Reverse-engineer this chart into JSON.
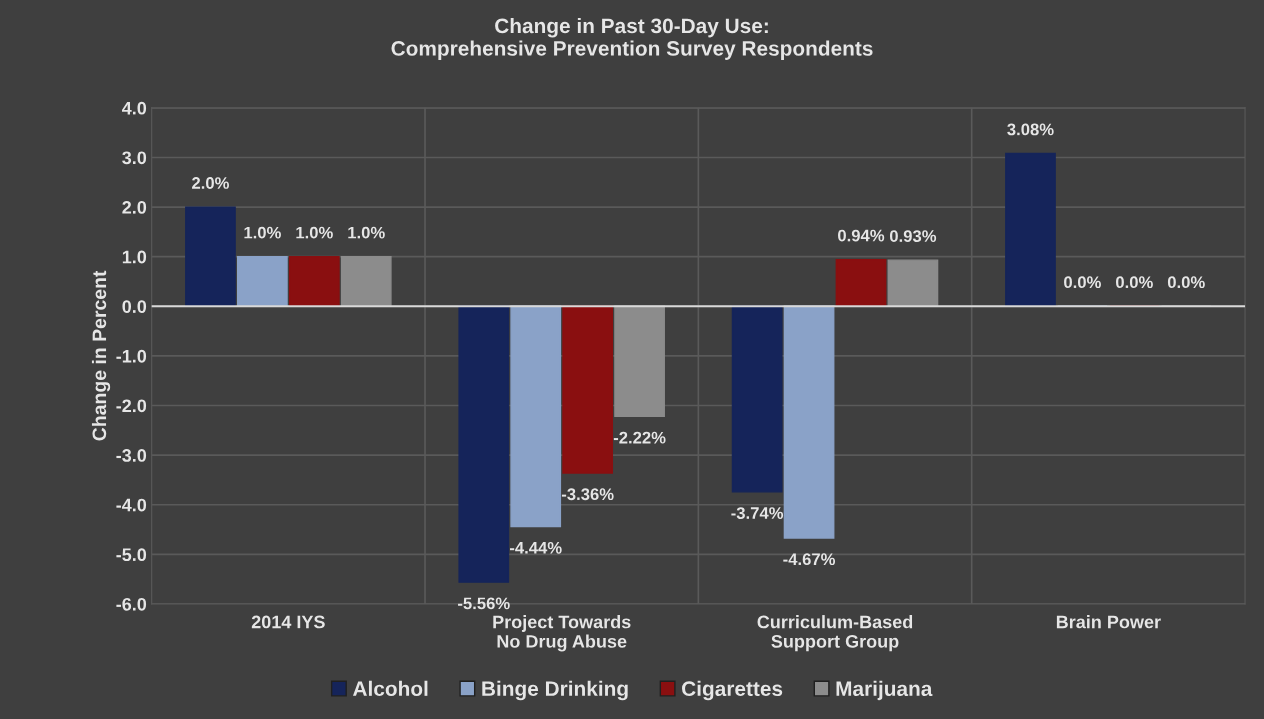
{
  "chart_data": {
    "type": "bar",
    "title": "Change in Past 30-Day Use:\nComprehensive Prevention Survey Respondents",
    "ylabel": "Change in Percent",
    "categories": [
      "2014 IYS",
      "Project Towards\nNo Drug Abuse",
      "Curriculum-Based\nSupport Group",
      "Brain Power"
    ],
    "series": [
      {
        "name": "Alcohol",
        "color": "#15245a",
        "values": [
          2.0,
          -5.56,
          -3.74,
          3.08
        ],
        "value_labels": [
          "2.0%",
          "-5.56%",
          "-3.74%",
          "3.08%"
        ]
      },
      {
        "name": "Binge Drinking",
        "color": "#8aa2c8",
        "values": [
          1.0,
          -4.44,
          -4.67,
          0.0
        ],
        "value_labels": [
          "1.0%",
          "-4.44%",
          "-4.67%",
          "0.0%"
        ]
      },
      {
        "name": "Cigarettes",
        "color": "#8a0f10",
        "values": [
          1.0,
          -3.36,
          0.94,
          0.0
        ],
        "value_labels": [
          "1.0%",
          "-3.36%",
          "0.94%",
          "0.0%"
        ]
      },
      {
        "name": "Marijuana",
        "color": "#8c8c8c",
        "values": [
          1.0,
          -2.22,
          0.93,
          0.0
        ],
        "value_labels": [
          "1.0%",
          "-2.22%",
          "0.93%",
          "0.0%"
        ]
      }
    ],
    "ylim": [
      -6.0,
      4.0
    ],
    "yticks": [
      {
        "value": -6,
        "label": "-6.0"
      },
      {
        "value": -5,
        "label": "-5.0"
      },
      {
        "value": -4,
        "label": "-4.0"
      },
      {
        "value": -3,
        "label": "-3.0"
      },
      {
        "value": -2,
        "label": "-2.0"
      },
      {
        "value": -1,
        "label": "-1.0"
      },
      {
        "value": 0,
        "label": "0.0"
      },
      {
        "value": 1,
        "label": "1.0"
      },
      {
        "value": 2,
        "label": "2.0"
      },
      {
        "value": 3,
        "label": "3.0"
      },
      {
        "value": 4,
        "label": "4.0"
      }
    ],
    "grid": "y",
    "legend": "bottom"
  }
}
